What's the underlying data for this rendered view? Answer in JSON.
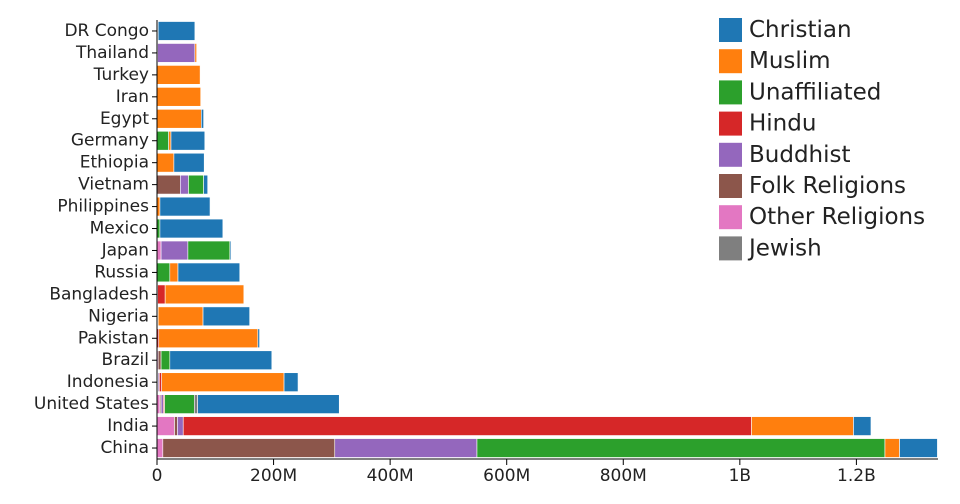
{
  "chart_data": {
    "type": "bar",
    "orientation": "horizontal",
    "stacked": true,
    "title": "",
    "xlabel": "",
    "ylabel": "",
    "xlim": [
      0,
      1340000000
    ],
    "x_ticks": [
      0,
      200000000,
      400000000,
      600000000,
      800000000,
      1000000000,
      1200000000
    ],
    "x_tick_labels": [
      "0",
      "200M",
      "400M",
      "600M",
      "800M",
      "1B",
      "1.2B"
    ],
    "grid": false,
    "legend_position": "top-right",
    "categories": [
      "China",
      "India",
      "United States",
      "Indonesia",
      "Brazil",
      "Pakistan",
      "Nigeria",
      "Bangladesh",
      "Russia",
      "Japan",
      "Mexico",
      "Philippines",
      "Vietnam",
      "Ethiopia",
      "Germany",
      "Egypt",
      "Iran",
      "Turkey",
      "Thailand",
      "DR Congo"
    ],
    "series": [
      {
        "name": "Other Religions",
        "color": "#e377c2",
        "values": [
          10000000,
          30000000,
          5000000,
          1000000,
          2000000,
          0,
          0,
          0,
          0,
          7000000,
          0,
          0,
          0,
          0,
          0,
          0,
          0,
          0,
          0,
          0
        ]
      },
      {
        "name": "Folk Religions",
        "color": "#8c564b",
        "values": [
          295000000,
          5000000,
          2000000,
          1000000,
          5000000,
          0,
          1000000,
          0,
          0,
          0,
          0,
          0,
          40000000,
          0,
          0,
          0,
          0,
          0,
          1000000,
          1000000
        ]
      },
      {
        "name": "Buddhist",
        "color": "#9467bd",
        "values": [
          244000000,
          10000000,
          4000000,
          2000000,
          0,
          0,
          0,
          1000000,
          0,
          46000000,
          0,
          0,
          14000000,
          0,
          0,
          0,
          0,
          0,
          64000000,
          0
        ]
      },
      {
        "name": "Hindu",
        "color": "#d62728",
        "values": [
          0,
          975000000,
          2000000,
          4000000,
          0,
          3000000,
          0,
          13000000,
          0,
          0,
          0,
          0,
          0,
          0,
          0,
          0,
          0,
          0,
          0,
          0
        ]
      },
      {
        "name": "Unaffiliated",
        "color": "#2ca02c",
        "values": [
          700000000,
          0,
          51000000,
          0,
          15000000,
          0,
          1000000,
          0,
          22000000,
          72000000,
          5000000,
          0,
          26000000,
          0,
          20000000,
          0,
          0,
          0,
          0,
          1000000
        ]
      },
      {
        "name": "Jewish",
        "color": "#7f7f7f",
        "values": [
          0,
          0,
          5700000,
          0,
          0,
          0,
          0,
          0,
          0,
          0,
          0,
          0,
          0,
          0,
          0,
          0,
          0,
          0,
          0,
          0
        ]
      },
      {
        "name": "Muslim",
        "color": "#ff7f0e",
        "values": [
          25000000,
          175000000,
          0,
          210000000,
          0,
          170000000,
          77000000,
          135000000,
          14000000,
          0,
          0,
          5000000,
          0,
          29000000,
          4000000,
          76000000,
          75000000,
          74000000,
          3000000,
          0
        ]
      },
      {
        "name": "Christian",
        "color": "#1f77b4",
        "values": [
          65000000,
          30000000,
          243000000,
          24000000,
          175000000,
          3000000,
          80000000,
          0,
          106000000,
          2000000,
          108000000,
          86000000,
          7000000,
          52000000,
          58000000,
          4000000,
          0,
          0,
          0,
          63000000
        ]
      }
    ],
    "legend_order": [
      "Christian",
      "Muslim",
      "Unaffiliated",
      "Hindu",
      "Buddhist",
      "Folk Religions",
      "Other Religions",
      "Jewish"
    ]
  }
}
